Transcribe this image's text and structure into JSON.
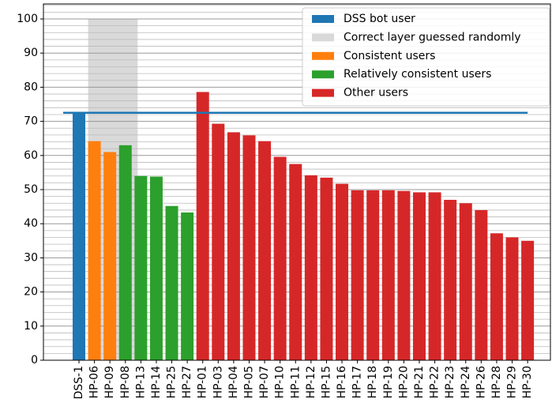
{
  "chart_data": {
    "type": "bar",
    "categories": [
      "DSS-1",
      "HP-06",
      "HP-09",
      "HP-08",
      "HP-13",
      "HP-14",
      "HP-25",
      "HP-27",
      "HP-01",
      "HP-03",
      "HP-04",
      "HP-05",
      "HP-07",
      "HP-10",
      "HP-11",
      "HP-12",
      "HP-15",
      "HP-16",
      "HP-17",
      "HP-18",
      "HP-19",
      "HP-20",
      "HP-21",
      "HP-22",
      "HP-23",
      "HP-24",
      "HP-26",
      "HP-28",
      "HP-29",
      "HP-30"
    ],
    "values": [
      72.5,
      64.2,
      61,
      63,
      54,
      53.8,
      45.2,
      43.3,
      78.6,
      69.3,
      66.8,
      65.9,
      64.2,
      59.6,
      57.5,
      54.2,
      53.5,
      51.7,
      49.8,
      49.8,
      49.8,
      49.6,
      49.2,
      49.2,
      47,
      46,
      44,
      37.2,
      36,
      35
    ],
    "colors": [
      "#1f77b4",
      "#ff7f0e",
      "#ff7f0e",
      "#2ca02c",
      "#2ca02c",
      "#2ca02c",
      "#2ca02c",
      "#2ca02c",
      "#d62728",
      "#d62728",
      "#d62728",
      "#d62728",
      "#d62728",
      "#d62728",
      "#d62728",
      "#d62728",
      "#d62728",
      "#d62728",
      "#d62728",
      "#d62728",
      "#d62728",
      "#d62728",
      "#d62728",
      "#d62728",
      "#d62728",
      "#d62728",
      "#d62728",
      "#d62728",
      "#d62728",
      "#d62728"
    ],
    "reference_line": {
      "value": 72.5,
      "color": "#1f77b4"
    },
    "shaded_range": {
      "categories": [
        "HP-06",
        "HP-13"
      ],
      "ylim": [
        0,
        100
      ],
      "color": "#d9d9d9"
    },
    "legend": [
      {
        "name": "DSS bot user",
        "color": "#1f77b4"
      },
      {
        "name": "Correct layer guessed randomly",
        "color": "#d9d9d9"
      },
      {
        "name": "Consistent users",
        "color": "#ff7f0e"
      },
      {
        "name": "Relatively consistent users",
        "color": "#2ca02c"
      },
      {
        "name": "Other users",
        "color": "#d62728"
      }
    ],
    "legend_position": "upper right",
    "ylim": [
      0,
      104.4
    ],
    "yticks": [
      0,
      10,
      20,
      30,
      40,
      50,
      60,
      70,
      80,
      90,
      100
    ],
    "minor_yticks": [
      2,
      4,
      6,
      8,
      12,
      14,
      16,
      18,
      22,
      24,
      26,
      28,
      32,
      34,
      36,
      38,
      42,
      44,
      46,
      48,
      52,
      54,
      56,
      58,
      62,
      64,
      66,
      68,
      72,
      74,
      76,
      78,
      82,
      84,
      86,
      88,
      92,
      94,
      96,
      98,
      102,
      104
    ],
    "grid": true
  }
}
